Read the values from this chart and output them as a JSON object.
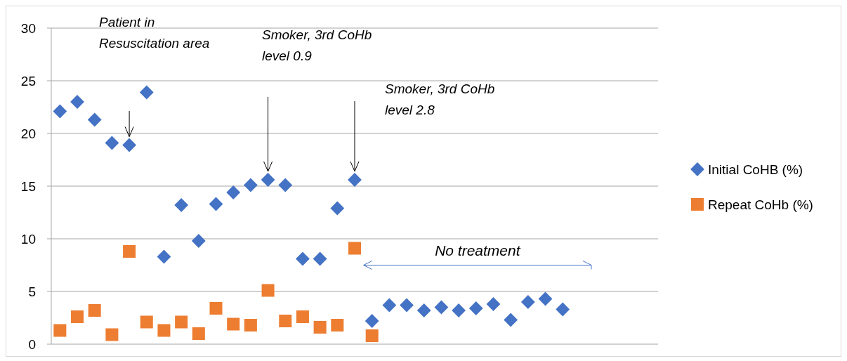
{
  "chart_data": {
    "type": "scatter",
    "categories": [
      null,
      null,
      null,
      null,
      null,
      null,
      null,
      null,
      null,
      null,
      null,
      null,
      null,
      null,
      null,
      null,
      null,
      null,
      null,
      null,
      null,
      null,
      null,
      null,
      null,
      null,
      null,
      null,
      null,
      null,
      null,
      null,
      null,
      null,
      null
    ],
    "series": [
      {
        "name": "Initial CoHB (%)",
        "color": "#4472c4",
        "marker": "diamond",
        "values": [
          22.1,
          23.0,
          21.3,
          19.1,
          18.9,
          23.9,
          8.3,
          13.2,
          9.8,
          13.3,
          14.4,
          15.1,
          15.6,
          15.1,
          8.1,
          8.1,
          12.9,
          15.6,
          2.2,
          3.7,
          3.7,
          3.2,
          3.5,
          3.2,
          3.4,
          3.8,
          2.3,
          4.0,
          4.3,
          3.3,
          null,
          null,
          null,
          null,
          null
        ]
      },
      {
        "name": "Repeat CoHb (%)",
        "color": "#ed7d31",
        "marker": "square",
        "values": [
          1.3,
          2.6,
          3.2,
          0.9,
          8.8,
          2.1,
          1.3,
          2.1,
          1.0,
          3.4,
          1.9,
          1.8,
          5.1,
          2.2,
          2.6,
          1.6,
          1.8,
          9.1,
          0.8,
          null,
          null,
          null,
          null,
          null,
          null,
          null,
          null,
          null,
          null,
          null,
          null,
          null,
          null,
          null,
          null
        ]
      }
    ],
    "ylim": [
      0,
      30
    ],
    "yticks": [
      0,
      5,
      10,
      15,
      20,
      25,
      30
    ],
    "grid": "y",
    "legend": "right",
    "annotations": [
      "Patient in Resuscitation area",
      "Smoker, 3rd CoHb level 0.9",
      "Smoker, 3rd CoHb level 2.8",
      "No treatment"
    ]
  }
}
